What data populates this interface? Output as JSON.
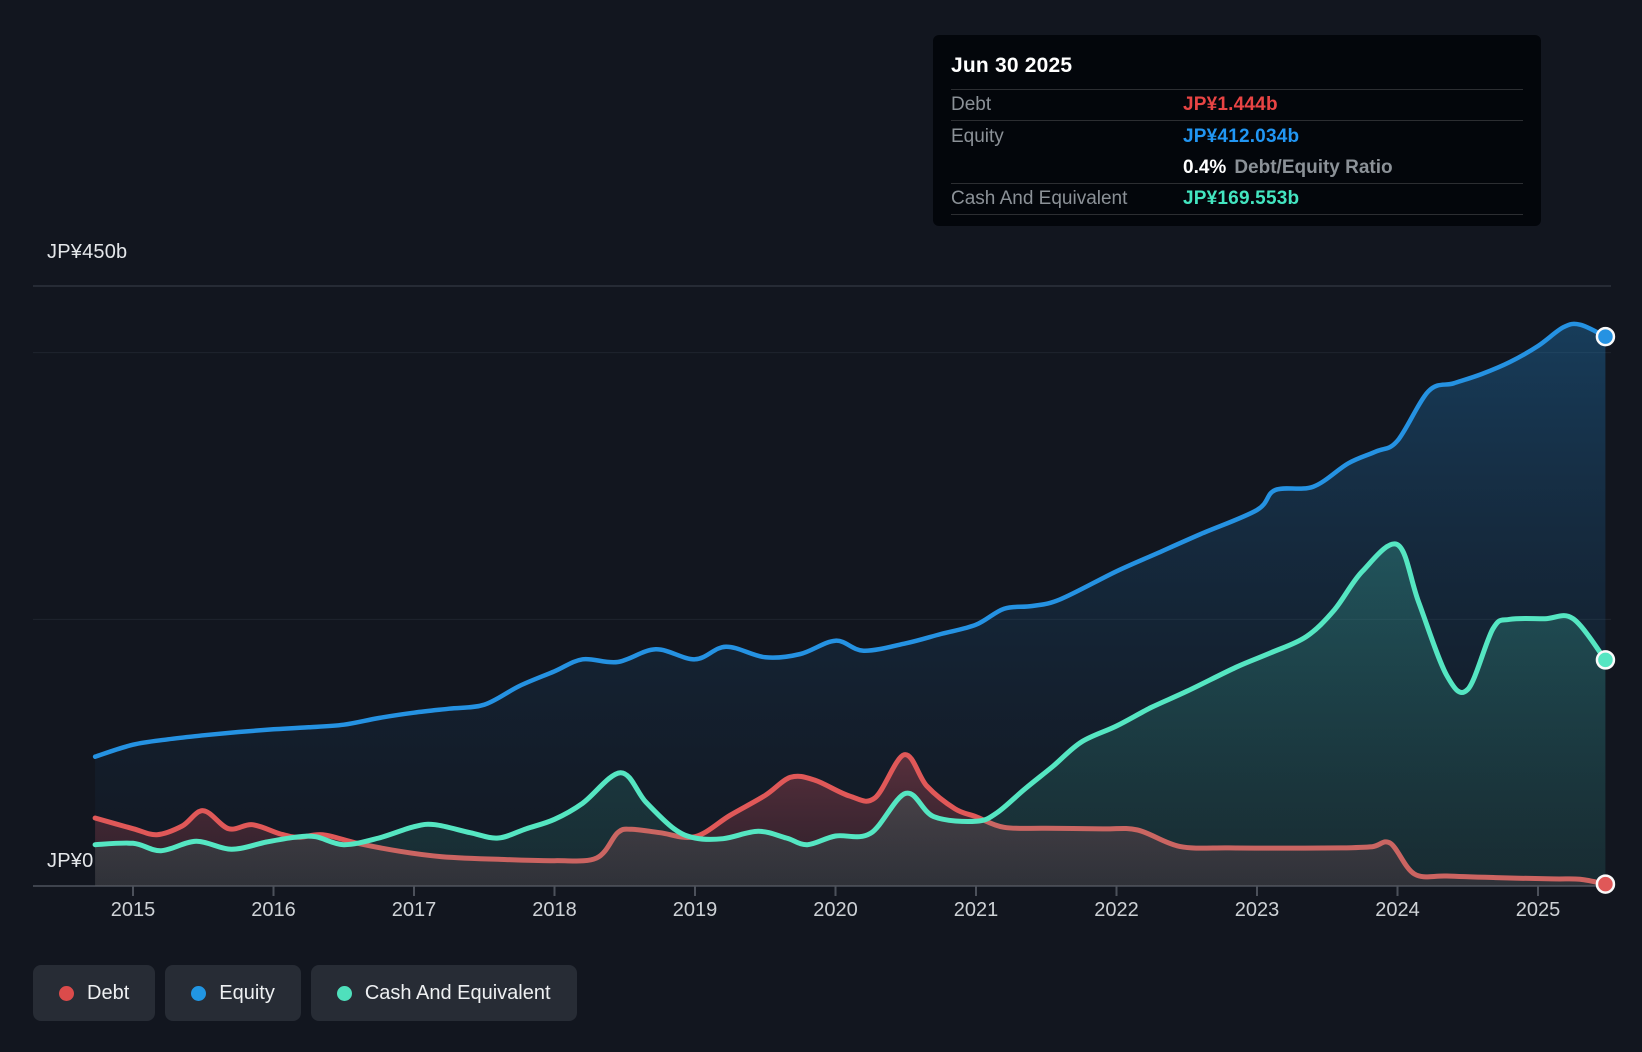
{
  "y_axis": {
    "top_label": "JP¥450b",
    "zero_label": "JP¥0"
  },
  "x_axis": {
    "years": [
      "2015",
      "2016",
      "2017",
      "2018",
      "2019",
      "2020",
      "2021",
      "2022",
      "2023",
      "2024",
      "2025"
    ]
  },
  "tooltip": {
    "date": "Jun 30 2025",
    "debt": {
      "label": "Debt",
      "value": "JP¥1.444b",
      "color": "#e84444"
    },
    "equity": {
      "label": "Equity",
      "value": "JP¥412.034b",
      "color": "#2196f3"
    },
    "ratio": {
      "value": "0.4%",
      "label": "Debt/Equity Ratio"
    },
    "cash": {
      "label": "Cash And Equivalent",
      "value": "JP¥169.553b",
      "color": "#43e5c0"
    }
  },
  "legend": {
    "items": [
      {
        "label": "Debt",
        "color": "#db4b4b"
      },
      {
        "label": "Equity",
        "color": "#2196e3"
      },
      {
        "label": "Cash And Equivalent",
        "color": "#4fe0bc"
      }
    ]
  },
  "chart_data": {
    "type": "area",
    "title": "Debt to Equity History and Analysis",
    "x_unit": "decimal_year",
    "xlim": [
      2014.73,
      2025.52
    ],
    "ylim": [
      0,
      450
    ],
    "y_currency": "JP¥ billions",
    "gridlines_b": [
      450,
      400,
      200,
      0
    ],
    "legend_position": "bottom-left",
    "latest_point": {
      "date": "Jun 30 2025",
      "debt": 1.444,
      "equity": 412.034,
      "cash": 169.553,
      "debt_equity_ratio_pct": 0.4
    },
    "series": [
      {
        "name": "Equity",
        "color": "#2592e2",
        "points": [
          [
            2014.73,
            97
          ],
          [
            2015.0,
            106
          ],
          [
            2015.25,
            110
          ],
          [
            2015.5,
            113
          ],
          [
            2015.75,
            115.5
          ],
          [
            2016.0,
            117.5
          ],
          [
            2016.25,
            119
          ],
          [
            2016.5,
            121
          ],
          [
            2016.75,
            126
          ],
          [
            2017.0,
            130
          ],
          [
            2017.25,
            133
          ],
          [
            2017.5,
            136
          ],
          [
            2017.75,
            150
          ],
          [
            2018.0,
            161
          ],
          [
            2018.2,
            170
          ],
          [
            2018.45,
            168
          ],
          [
            2018.72,
            177.5
          ],
          [
            2019.0,
            170
          ],
          [
            2019.22,
            179.5
          ],
          [
            2019.5,
            171.5
          ],
          [
            2019.75,
            174
          ],
          [
            2020.0,
            184
          ],
          [
            2020.2,
            176.5
          ],
          [
            2020.5,
            182
          ],
          [
            2020.75,
            189
          ],
          [
            2021.0,
            196
          ],
          [
            2021.2,
            208
          ],
          [
            2021.4,
            210
          ],
          [
            2021.6,
            215
          ],
          [
            2022.0,
            236
          ],
          [
            2022.3,
            250
          ],
          [
            2022.6,
            264
          ],
          [
            2023.0,
            282
          ],
          [
            2023.13,
            297
          ],
          [
            2023.4,
            299.5
          ],
          [
            2023.65,
            317
          ],
          [
            2023.85,
            326
          ],
          [
            2024.0,
            334
          ],
          [
            2024.22,
            371
          ],
          [
            2024.4,
            377
          ],
          [
            2024.6,
            384
          ],
          [
            2024.8,
            393
          ],
          [
            2025.0,
            405
          ],
          [
            2025.18,
            419
          ],
          [
            2025.3,
            421
          ],
          [
            2025.48,
            412.034
          ]
        ]
      },
      {
        "name": "Debt",
        "color": "#e05858",
        "points": [
          [
            2014.73,
            51
          ],
          [
            2015.0,
            43
          ],
          [
            2015.17,
            38.5
          ],
          [
            2015.35,
            45
          ],
          [
            2015.5,
            56.5
          ],
          [
            2015.68,
            43
          ],
          [
            2015.85,
            46
          ],
          [
            2016.05,
            39
          ],
          [
            2016.18,
            36.5
          ],
          [
            2016.35,
            38.5
          ],
          [
            2016.6,
            32
          ],
          [
            2016.9,
            26
          ],
          [
            2017.2,
            22
          ],
          [
            2017.6,
            20
          ],
          [
            2018.0,
            19
          ],
          [
            2018.3,
            21
          ],
          [
            2018.45,
            40
          ],
          [
            2018.55,
            42.5
          ],
          [
            2018.75,
            40
          ],
          [
            2019.0,
            37
          ],
          [
            2019.25,
            53
          ],
          [
            2019.5,
            68
          ],
          [
            2019.68,
            81.5
          ],
          [
            2019.85,
            79.5
          ],
          [
            2020.1,
            67.5
          ],
          [
            2020.28,
            66
          ],
          [
            2020.49,
            98.5
          ],
          [
            2020.65,
            75
          ],
          [
            2020.85,
            58
          ],
          [
            2021.0,
            52
          ],
          [
            2021.2,
            44
          ],
          [
            2021.5,
            43.3
          ],
          [
            2021.9,
            42.8
          ],
          [
            2022.15,
            42
          ],
          [
            2022.45,
            29.7
          ],
          [
            2022.8,
            28.6
          ],
          [
            2023.2,
            28.4
          ],
          [
            2023.6,
            28.6
          ],
          [
            2023.82,
            29.5
          ],
          [
            2023.95,
            32
          ],
          [
            2024.12,
            9
          ],
          [
            2024.35,
            7.5
          ],
          [
            2024.7,
            6.3
          ],
          [
            2025.1,
            5.3
          ],
          [
            2025.3,
            5
          ],
          [
            2025.48,
            1.444
          ]
        ]
      },
      {
        "name": "Cash And Equivalent",
        "color": "#55e6c2",
        "points": [
          [
            2014.73,
            31
          ],
          [
            2015.0,
            32
          ],
          [
            2015.2,
            26.5
          ],
          [
            2015.45,
            33.5
          ],
          [
            2015.7,
            27.5
          ],
          [
            2015.95,
            33
          ],
          [
            2016.15,
            36.5
          ],
          [
            2016.3,
            37
          ],
          [
            2016.5,
            31
          ],
          [
            2016.75,
            36
          ],
          [
            2017.0,
            44.5
          ],
          [
            2017.15,
            46
          ],
          [
            2017.4,
            40
          ],
          [
            2017.6,
            36
          ],
          [
            2017.8,
            43
          ],
          [
            2018.0,
            50
          ],
          [
            2018.2,
            62
          ],
          [
            2018.47,
            85
          ],
          [
            2018.65,
            63
          ],
          [
            2018.85,
            43
          ],
          [
            2019.0,
            36
          ],
          [
            2019.2,
            35.5
          ],
          [
            2019.45,
            41
          ],
          [
            2019.65,
            36
          ],
          [
            2019.8,
            31
          ],
          [
            2020.0,
            37.5
          ],
          [
            2020.25,
            39.5
          ],
          [
            2020.5,
            69.5
          ],
          [
            2020.7,
            52
          ],
          [
            2021.0,
            48.5
          ],
          [
            2021.15,
            55
          ],
          [
            2021.35,
            73
          ],
          [
            2021.55,
            90
          ],
          [
            2021.75,
            108
          ],
          [
            2022.0,
            120
          ],
          [
            2022.25,
            134
          ],
          [
            2022.5,
            146
          ],
          [
            2022.85,
            164
          ],
          [
            2023.1,
            175
          ],
          [
            2023.35,
            187
          ],
          [
            2023.55,
            207
          ],
          [
            2023.75,
            236
          ],
          [
            2024.0,
            256
          ],
          [
            2024.15,
            213
          ],
          [
            2024.35,
            158
          ],
          [
            2024.5,
            147.5
          ],
          [
            2024.68,
            193
          ],
          [
            2024.8,
            200
          ],
          [
            2025.05,
            200.5
          ],
          [
            2025.25,
            200.5
          ],
          [
            2025.48,
            169.553
          ]
        ]
      }
    ]
  }
}
